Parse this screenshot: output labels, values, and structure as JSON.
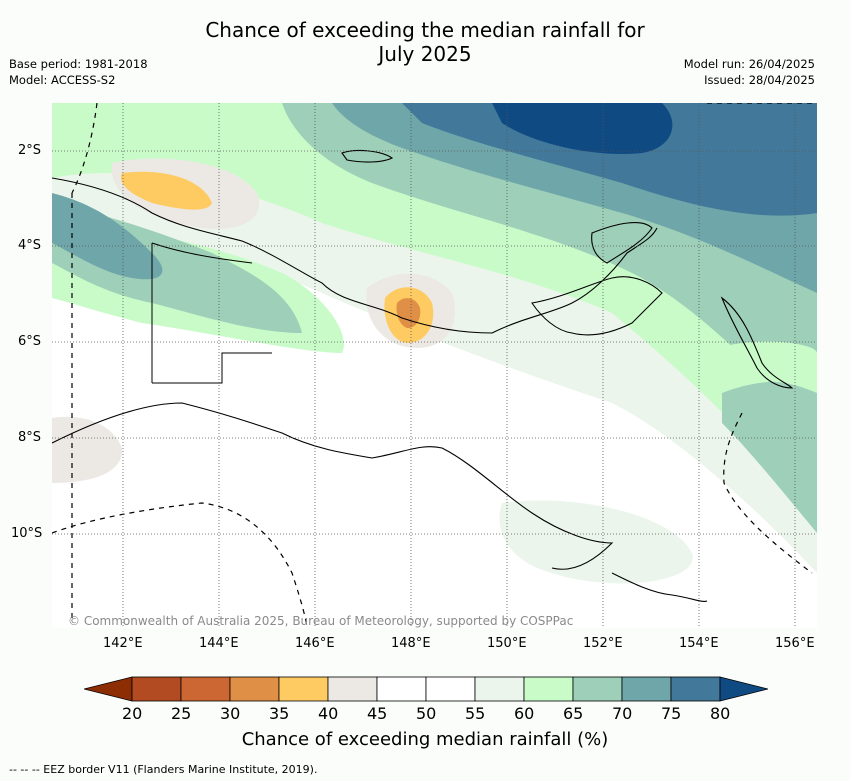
{
  "title": {
    "line1": "Chance of exceeding the median rainfall for",
    "line2": "July 2025"
  },
  "meta": {
    "base_period": "Base period: 1981-2018",
    "model": "Model: ACCESS-S2",
    "model_run": "Model run: 26/04/2025",
    "issued": "Issued: 28/04/2025"
  },
  "axes": {
    "lat_labels": [
      "2°S",
      "4°S",
      "6°S",
      "8°S",
      "10°S"
    ],
    "lon_labels": [
      "142°E",
      "144°E",
      "146°E",
      "148°E",
      "150°E",
      "152°E",
      "154°E",
      "156°E"
    ]
  },
  "credit": "© Commonwealth of Australia 2025, Bureau of Meteorology, supported by COSPPac",
  "colorbar": {
    "ticks": [
      "20",
      "25",
      "30",
      "35",
      "40",
      "45",
      "50",
      "55",
      "60",
      "65",
      "70",
      "75",
      "80"
    ],
    "colors": [
      "#8c2d04",
      "#b24a22",
      "#cc6632",
      "#e09046",
      "#fecb62",
      "#ece9e5",
      "#ffffff",
      "#ffffff",
      "#ebf5eb",
      "#c9fbc9",
      "#9ecfb8",
      "#6fa6a9",
      "#42799a",
      "#104a82"
    ],
    "label": "Chance of exceeding median rainfall (%)"
  },
  "footer": "--  --  -- EEZ border V11 (Flanders Marine Institute, 2019)."
}
